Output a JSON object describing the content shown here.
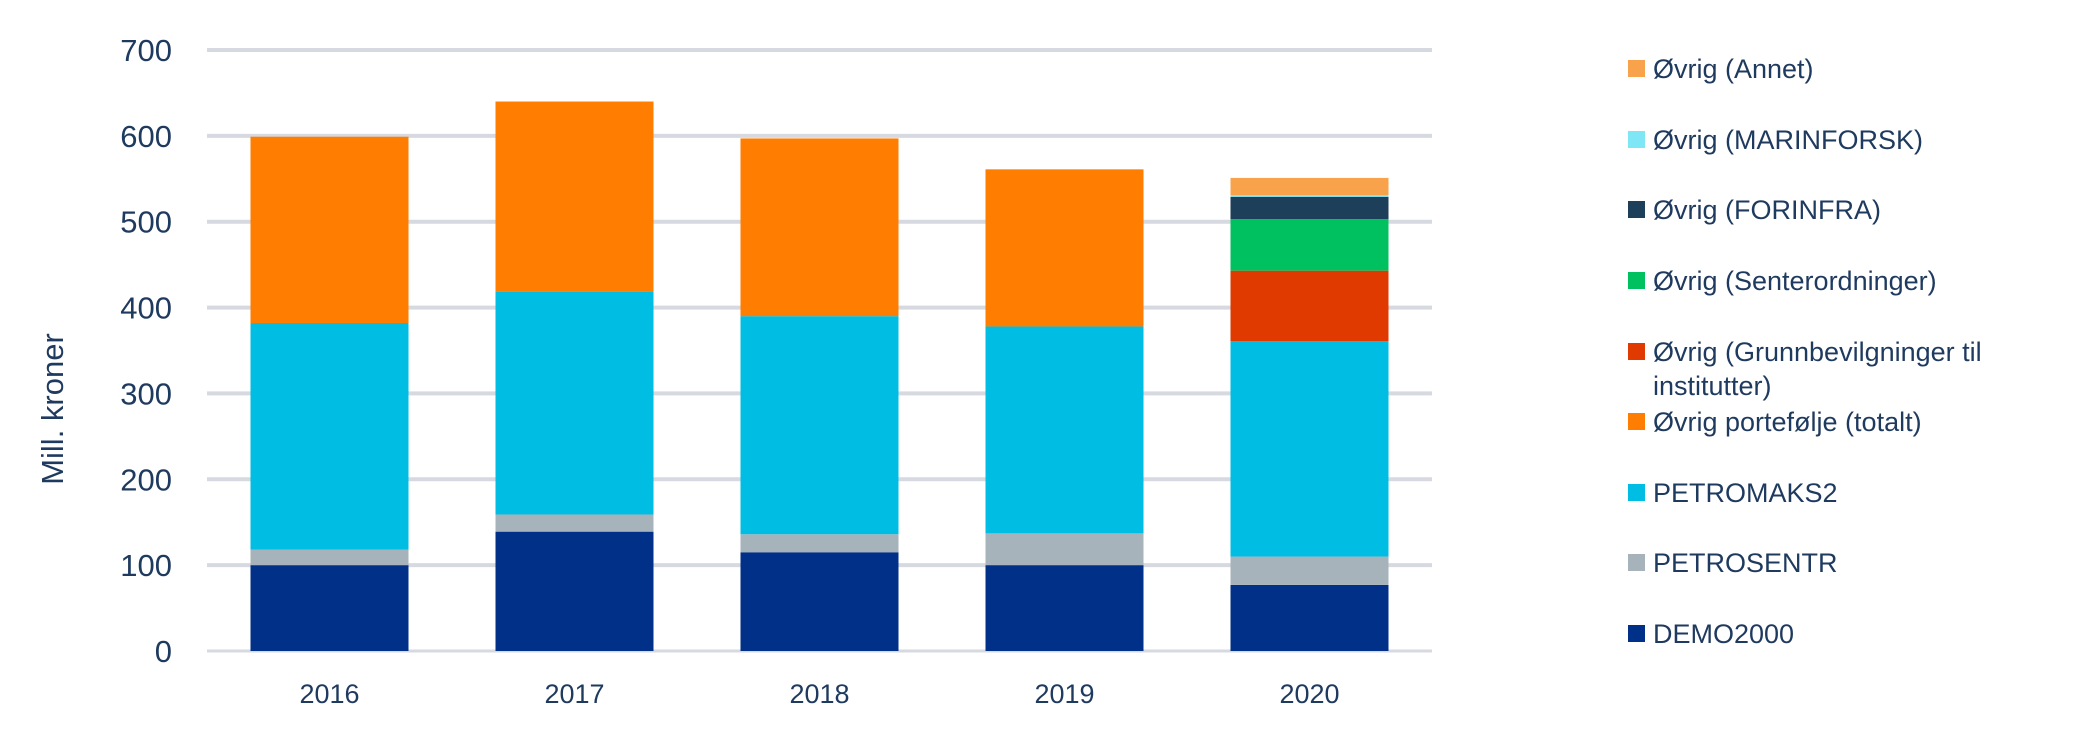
{
  "chart_data": {
    "type": "bar",
    "stacked": true,
    "categories": [
      "2016",
      "2017",
      "2018",
      "2019",
      "2020"
    ],
    "ylabel": "Mill. kroner",
    "xlabel": "",
    "ylim": [
      0,
      700
    ],
    "yticks": [
      "0",
      "100",
      "200",
      "300",
      "400",
      "500",
      "600",
      "700"
    ],
    "grid": true,
    "legend_position": "right",
    "series": [
      {
        "name": "DEMO2000",
        "color": "#003087",
        "values": [
          100,
          139,
          115,
          100,
          77
        ]
      },
      {
        "name": "PETROSENTR",
        "color": "#a7b3bb",
        "values": [
          18,
          20,
          21,
          37,
          33
        ]
      },
      {
        "name": "PETROMAKS2",
        "color": "#00bde3",
        "values": [
          264,
          260,
          254,
          241,
          251
        ]
      },
      {
        "name": "Øvrig portefølje (totalt)",
        "color": "#ff7d00",
        "values": [
          217,
          221,
          207,
          183,
          0
        ]
      },
      {
        "name": "Øvrig (Grunnbevilgninger til institutter)",
        "color": "#e03a00",
        "values": [
          0,
          0,
          0,
          0,
          82
        ]
      },
      {
        "name": "Øvrig (Senterordninger)",
        "color": "#00c15f",
        "values": [
          0,
          0,
          0,
          0,
          60
        ]
      },
      {
        "name": "Øvrig (FORINFRA)",
        "color": "#1e3f5a",
        "values": [
          0,
          0,
          0,
          0,
          26
        ]
      },
      {
        "name": "Øvrig (MARINFORSK)",
        "color": "#7ee6f5",
        "values": [
          0,
          0,
          0,
          0,
          2
        ]
      },
      {
        "name": "Øvrig (Annet)",
        "color": "#f8a24b",
        "values": [
          0,
          0,
          0,
          0,
          20
        ]
      }
    ]
  }
}
